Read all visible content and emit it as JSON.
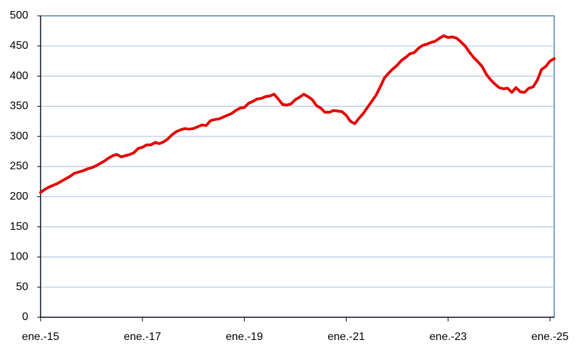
{
  "chart_data": {
    "type": "line",
    "categories": [
      "ene.-15",
      null,
      null,
      null,
      null,
      null,
      null,
      null,
      null,
      null,
      null,
      null,
      null,
      null,
      null,
      null,
      null,
      null,
      null,
      null,
      null,
      null,
      null,
      null,
      "ene.-17",
      null,
      null,
      null,
      null,
      null,
      null,
      null,
      null,
      null,
      null,
      null,
      null,
      null,
      null,
      null,
      null,
      null,
      null,
      null,
      null,
      null,
      null,
      null,
      "ene.-19",
      null,
      null,
      null,
      null,
      null,
      null,
      null,
      null,
      null,
      null,
      null,
      null,
      null,
      null,
      null,
      null,
      null,
      null,
      null,
      null,
      null,
      null,
      null,
      "ene.-21",
      null,
      null,
      null,
      null,
      null,
      null,
      null,
      null,
      null,
      null,
      null,
      null,
      null,
      null,
      null,
      null,
      null,
      null,
      null,
      null,
      null,
      null,
      null,
      "ene.-23",
      null,
      null,
      null,
      null,
      null,
      null,
      null,
      null,
      null,
      null,
      null,
      null,
      null,
      null,
      null,
      null,
      null,
      null,
      null,
      null,
      null,
      null,
      null,
      "ene.-25",
      null
    ],
    "values": [
      207,
      212,
      216,
      219,
      222,
      226,
      230,
      234,
      239,
      241,
      243,
      246,
      248,
      251,
      255,
      259,
      264,
      268,
      270,
      266,
      268,
      270,
      273,
      280,
      282,
      286,
      286,
      290,
      288,
      291,
      296,
      303,
      308,
      311,
      313,
      312,
      313,
      316,
      319,
      318,
      326,
      328,
      329,
      332,
      335,
      338,
      343,
      347,
      348,
      355,
      358,
      362,
      363,
      366,
      367,
      370,
      362,
      353,
      352,
      354,
      361,
      365,
      370,
      366,
      361,
      351,
      347,
      340,
      340,
      343,
      342,
      341,
      335,
      325,
      321,
      330,
      338,
      348,
      358,
      368,
      382,
      397,
      405,
      412,
      418,
      426,
      431,
      437,
      439,
      446,
      451,
      453,
      456,
      458,
      463,
      467,
      464,
      465,
      463,
      457,
      450,
      440,
      431,
      424,
      416,
      403,
      394,
      387,
      381,
      379,
      380,
      373,
      381,
      374,
      373,
      380,
      382,
      393,
      411,
      416,
      425,
      429
    ],
    "color": "#e60000",
    "ylim": [
      0,
      500
    ],
    "yticks": [
      0,
      50,
      100,
      150,
      200,
      250,
      300,
      350,
      400,
      450,
      500
    ],
    "grid": true
  }
}
